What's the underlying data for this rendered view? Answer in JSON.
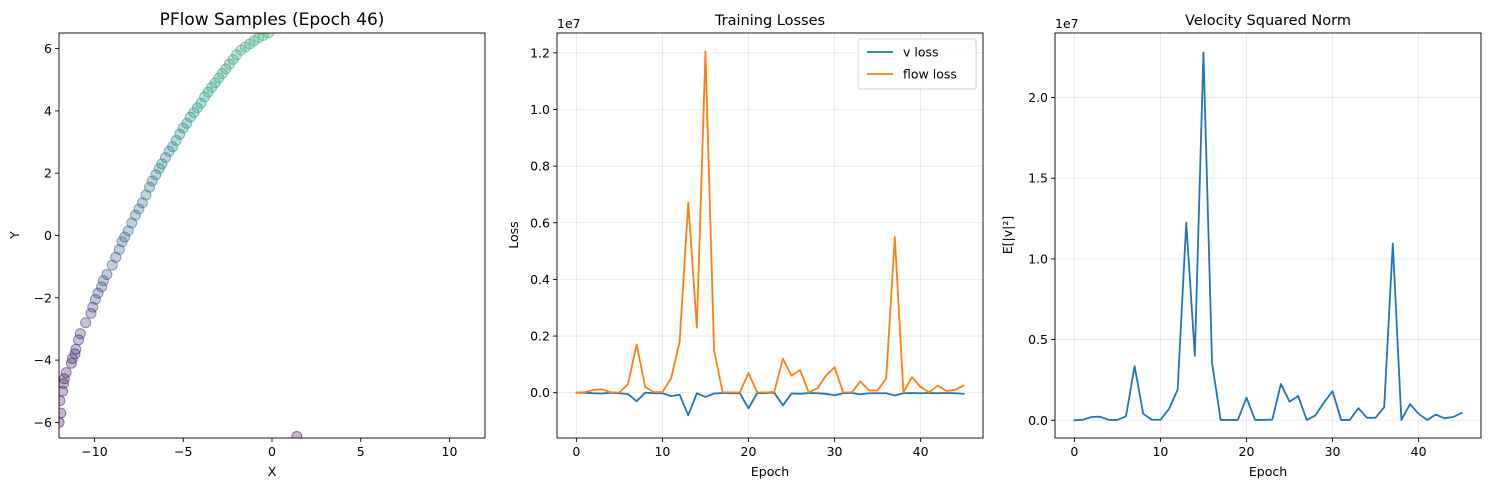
{
  "chart_data": [
    {
      "type": "scatter",
      "title": "PFlow Samples (Epoch 46)",
      "xlabel": "X",
      "ylabel": "Y",
      "xlim": [
        -12,
        12
      ],
      "ylim": [
        -6.5,
        6.5
      ],
      "xticks": [
        -10,
        -5,
        0,
        5,
        10
      ],
      "yticks": [
        -6,
        -4,
        -2,
        0,
        2,
        4,
        6
      ],
      "grid": false,
      "marker_alpha": 0.3,
      "colormap": [
        "#440154",
        "#3b528b",
        "#21918c",
        "#5ec962"
      ],
      "points": [
        [
          -12.0,
          -6.0
        ],
        [
          -11.9,
          -5.7
        ],
        [
          -11.95,
          -5.3
        ],
        [
          -11.8,
          -5.0
        ],
        [
          -11.75,
          -4.75
        ],
        [
          -11.7,
          -4.6
        ],
        [
          -11.6,
          -4.4
        ],
        [
          -11.3,
          -4.1
        ],
        [
          -11.25,
          -3.95
        ],
        [
          -11.1,
          -3.8
        ],
        [
          -11.05,
          -3.65
        ],
        [
          -10.9,
          -3.35
        ],
        [
          -10.8,
          -3.15
        ],
        [
          -10.5,
          -2.8
        ],
        [
          -10.2,
          -2.5
        ],
        [
          -10.1,
          -2.3
        ],
        [
          -9.95,
          -2.05
        ],
        [
          -9.8,
          -1.85
        ],
        [
          -9.6,
          -1.65
        ],
        [
          -9.5,
          -1.45
        ],
        [
          -9.3,
          -1.25
        ],
        [
          -9.0,
          -0.95
        ],
        [
          -8.8,
          -0.7
        ],
        [
          -8.6,
          -0.45
        ],
        [
          -8.45,
          -0.2
        ],
        [
          -8.3,
          -0.05
        ],
        [
          -8.1,
          0.15
        ],
        [
          -7.9,
          0.4
        ],
        [
          -7.7,
          0.65
        ],
        [
          -7.5,
          0.85
        ],
        [
          -7.3,
          1.05
        ],
        [
          -7.1,
          1.3
        ],
        [
          -6.9,
          1.55
        ],
        [
          -6.75,
          1.75
        ],
        [
          -6.55,
          1.95
        ],
        [
          -6.35,
          2.15
        ],
        [
          -6.2,
          2.3
        ],
        [
          -6.0,
          2.5
        ],
        [
          -5.8,
          2.7
        ],
        [
          -5.6,
          2.85
        ],
        [
          -5.4,
          3.05
        ],
        [
          -5.2,
          3.25
        ],
        [
          -5.0,
          3.45
        ],
        [
          -4.8,
          3.6
        ],
        [
          -4.6,
          3.8
        ],
        [
          -4.4,
          3.95
        ],
        [
          -4.2,
          4.1
        ],
        [
          -4.0,
          4.25
        ],
        [
          -3.8,
          4.45
        ],
        [
          -3.6,
          4.6
        ],
        [
          -3.4,
          4.75
        ],
        [
          -3.2,
          4.9
        ],
        [
          -3.0,
          5.05
        ],
        [
          -2.8,
          5.2
        ],
        [
          -2.6,
          5.35
        ],
        [
          -2.4,
          5.5
        ],
        [
          -2.2,
          5.65
        ],
        [
          -2.0,
          5.8
        ],
        [
          -1.75,
          5.95
        ],
        [
          -1.5,
          6.05
        ],
        [
          -1.25,
          6.15
        ],
        [
          -1.0,
          6.25
        ],
        [
          -0.75,
          6.35
        ],
        [
          -0.5,
          6.42
        ],
        [
          -0.2,
          6.5
        ],
        [
          1.4,
          -6.45
        ]
      ]
    },
    {
      "type": "line",
      "title": "Training Losses",
      "xlabel": "Epoch",
      "ylabel": "Loss",
      "scale_label": "1e7",
      "xlim": [
        -2.25,
        47.25
      ],
      "ylim": [
        -0.16,
        1.27
      ],
      "xticks": [
        0,
        10,
        20,
        30,
        40
      ],
      "yticks": [
        0.0,
        0.2,
        0.4,
        0.6,
        0.8,
        1.0,
        1.2
      ],
      "ytick_labels": [
        "0.0",
        "0.2",
        "0.4",
        "0.6",
        "0.8",
        "1.0",
        "1.2"
      ],
      "grid": true,
      "legend_position": "top-right",
      "x": [
        0,
        1,
        2,
        3,
        4,
        5,
        6,
        7,
        8,
        9,
        10,
        11,
        12,
        13,
        14,
        15,
        16,
        17,
        18,
        19,
        20,
        21,
        22,
        23,
        24,
        25,
        26,
        27,
        28,
        29,
        30,
        31,
        32,
        33,
        34,
        35,
        36,
        37,
        38,
        39,
        40,
        41,
        42,
        43,
        44,
        45
      ],
      "series": [
        {
          "name": "v loss",
          "color": "#1f77b4",
          "values": [
            0,
            0,
            -0.002,
            -0.003,
            0,
            -0.002,
            -0.005,
            -0.03,
            0,
            -0.002,
            -0.002,
            -0.012,
            -0.007,
            -0.08,
            -0.002,
            -0.015,
            -0.003,
            -0.001,
            -0.002,
            -0.002,
            -0.055,
            -0.002,
            -0.001,
            0,
            -0.045,
            -0.003,
            -0.004,
            -0.001,
            -0.002,
            -0.004,
            -0.009,
            -0.002,
            -0.001,
            -0.006,
            -0.002,
            -0.002,
            -0.002,
            -0.01,
            -0.002,
            -0.001,
            -0.002,
            -0.001,
            -0.002,
            -0.001,
            -0.002,
            -0.004
          ]
        },
        {
          "name": "flow loss",
          "color": "#ff7f0e",
          "values": [
            0,
            0.002,
            0.01,
            0.012,
            0.001,
            0.001,
            0.03,
            0.17,
            0.02,
            0.002,
            0.002,
            0.05,
            0.18,
            0.67,
            0.23,
            1.205,
            0.15,
            0.001,
            0.001,
            0.001,
            0.07,
            0.001,
            0.001,
            0.003,
            0.12,
            0.06,
            0.08,
            0.001,
            0.015,
            0.06,
            0.09,
            0.001,
            0.001,
            0.04,
            0.008,
            0.008,
            0.05,
            0.55,
            0.001,
            0.055,
            0.02,
            0.001,
            0.025,
            0.006,
            0.01,
            0.025
          ]
        }
      ]
    },
    {
      "type": "line",
      "title": "Velocity Squared Norm",
      "xlabel": "Epoch",
      "ylabel": "E[|v|²]",
      "scale_label": "1e7",
      "xlim": [
        -2.25,
        47.25
      ],
      "ylim": [
        -0.11,
        2.4
      ],
      "xticks": [
        0,
        10,
        20,
        30,
        40
      ],
      "yticks": [
        0.0,
        0.5,
        1.0,
        1.5,
        2.0
      ],
      "ytick_labels": [
        "0.0",
        "0.5",
        "1.0",
        "1.5",
        "2.0"
      ],
      "grid": true,
      "x": [
        0,
        1,
        2,
        3,
        4,
        5,
        6,
        7,
        8,
        9,
        10,
        11,
        12,
        13,
        14,
        15,
        16,
        17,
        18,
        19,
        20,
        21,
        22,
        23,
        24,
        25,
        26,
        27,
        28,
        29,
        30,
        31,
        32,
        33,
        34,
        35,
        36,
        37,
        38,
        39,
        40,
        41,
        42,
        43,
        44,
        45
      ],
      "series": [
        {
          "color": "#1f77b4",
          "values": [
            0,
            0.003,
            0.02,
            0.022,
            0.002,
            0.002,
            0.025,
            0.335,
            0.04,
            0.003,
            0.003,
            0.07,
            0.19,
            1.225,
            0.4,
            2.28,
            0.355,
            0.002,
            0.002,
            0.002,
            0.14,
            0.002,
            0.002,
            0.004,
            0.225,
            0.115,
            0.15,
            0.002,
            0.03,
            0.11,
            0.18,
            0.002,
            0.002,
            0.075,
            0.015,
            0.016,
            0.08,
            1.095,
            0.002,
            0.1,
            0.04,
            0.002,
            0.035,
            0.012,
            0.02,
            0.045
          ]
        }
      ]
    }
  ]
}
